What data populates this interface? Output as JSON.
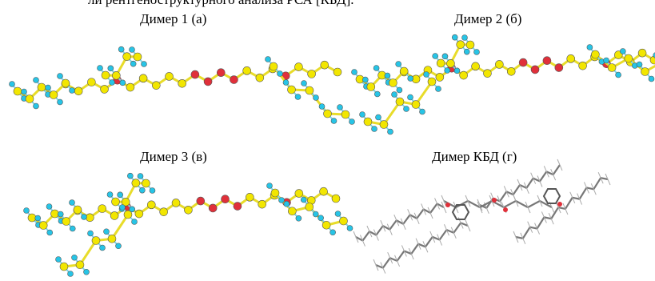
{
  "header": {
    "text": "ли рентгеноструктурного анализа РСА [КБД]."
  },
  "panels": [
    {
      "caption": "Димер 1 (а)"
    },
    {
      "caption": "Димер 2 (б)"
    },
    {
      "caption": "Димер 3 (в)"
    },
    {
      "caption": "Димер КБД (г)"
    }
  ]
}
